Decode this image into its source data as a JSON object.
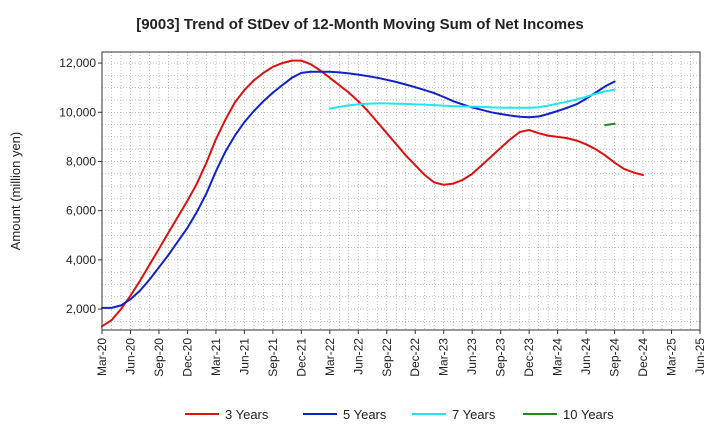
{
  "chart_data": {
    "type": "line",
    "title": "[9003]  Trend of StDev of 12-Month Moving Sum of Net Incomes",
    "ylabel": "Amount (million yen)",
    "xlabel": "",
    "ylim": [
      1150,
      12450
    ],
    "yticks": [
      2000,
      4000,
      6000,
      8000,
      10000,
      12000
    ],
    "ytick_labels": [
      "2,000",
      "4,000",
      "6,000",
      "8,000",
      "10,000",
      "12,000"
    ],
    "xticks": [
      "2020-03",
      "2020-06",
      "2020-09",
      "2020-12",
      "2021-03",
      "2021-06",
      "2021-09",
      "2021-12",
      "2022-03",
      "2022-06",
      "2022-09",
      "2022-12",
      "2023-03",
      "2023-06",
      "2023-09",
      "2023-12",
      "2024-03",
      "2024-06",
      "2024-09",
      "2024-12",
      "2025-03",
      "2025-06"
    ],
    "xtick_labels": [
      "Mar-20",
      "Jun-20",
      "Sep-20",
      "Dec-20",
      "Mar-21",
      "Jun-21",
      "Sep-21",
      "Dec-21",
      "Mar-22",
      "Jun-22",
      "Sep-22",
      "Dec-22",
      "Mar-23",
      "Jun-23",
      "Sep-23",
      "Dec-23",
      "Mar-24",
      "Jun-24",
      "Sep-24",
      "Dec-24",
      "Mar-25",
      "Jun-25"
    ],
    "grid": true,
    "legend_position": "bottom",
    "series": [
      {
        "name": "3 Years",
        "color": "#dd1111",
        "points": [
          [
            "2020-03",
            1300
          ],
          [
            "2020-04",
            1550
          ],
          [
            "2020-05",
            2000
          ],
          [
            "2020-06",
            2550
          ],
          [
            "2020-07",
            3150
          ],
          [
            "2020-08",
            3800
          ],
          [
            "2020-09",
            4450
          ],
          [
            "2020-10",
            5100
          ],
          [
            "2020-11",
            5750
          ],
          [
            "2020-12",
            6400
          ],
          [
            "2021-01",
            7100
          ],
          [
            "2021-02",
            7950
          ],
          [
            "2021-03",
            8900
          ],
          [
            "2021-04",
            9700
          ],
          [
            "2021-05",
            10400
          ],
          [
            "2021-06",
            10900
          ],
          [
            "2021-07",
            11300
          ],
          [
            "2021-08",
            11600
          ],
          [
            "2021-09",
            11850
          ],
          [
            "2021-10",
            12000
          ],
          [
            "2021-11",
            12100
          ],
          [
            "2021-12",
            12100
          ],
          [
            "2022-01",
            11950
          ],
          [
            "2022-02",
            11700
          ],
          [
            "2022-03",
            11400
          ],
          [
            "2022-04",
            11100
          ],
          [
            "2022-05",
            10800
          ],
          [
            "2022-06",
            10450
          ],
          [
            "2022-07",
            10050
          ],
          [
            "2022-08",
            9600
          ],
          [
            "2022-09",
            9150
          ],
          [
            "2022-10",
            8700
          ],
          [
            "2022-11",
            8250
          ],
          [
            "2022-12",
            7850
          ],
          [
            "2023-01",
            7450
          ],
          [
            "2023-02",
            7150
          ],
          [
            "2023-03",
            7050
          ],
          [
            "2023-04",
            7100
          ],
          [
            "2023-05",
            7250
          ],
          [
            "2023-06",
            7500
          ],
          [
            "2023-07",
            7850
          ],
          [
            "2023-08",
            8200
          ],
          [
            "2023-09",
            8550
          ],
          [
            "2023-10",
            8900
          ],
          [
            "2023-11",
            9200
          ],
          [
            "2023-12",
            9280
          ],
          [
            "2024-01",
            9150
          ],
          [
            "2024-02",
            9050
          ],
          [
            "2024-03",
            9000
          ],
          [
            "2024-04",
            8950
          ],
          [
            "2024-05",
            8850
          ],
          [
            "2024-06",
            8700
          ],
          [
            "2024-07",
            8500
          ],
          [
            "2024-08",
            8250
          ],
          [
            "2024-09",
            7950
          ],
          [
            "2024-10",
            7700
          ],
          [
            "2024-11",
            7550
          ],
          [
            "2024-12",
            7450
          ]
        ]
      },
      {
        "name": "5 Years",
        "color": "#1122cc",
        "points": [
          [
            "2020-03",
            2050
          ],
          [
            "2020-04",
            2050
          ],
          [
            "2020-05",
            2150
          ],
          [
            "2020-06",
            2400
          ],
          [
            "2020-07",
            2750
          ],
          [
            "2020-08",
            3200
          ],
          [
            "2020-09",
            3700
          ],
          [
            "2020-10",
            4200
          ],
          [
            "2020-11",
            4750
          ],
          [
            "2020-12",
            5300
          ],
          [
            "2021-01",
            5950
          ],
          [
            "2021-02",
            6700
          ],
          [
            "2021-03",
            7600
          ],
          [
            "2021-04",
            8400
          ],
          [
            "2021-05",
            9050
          ],
          [
            "2021-06",
            9600
          ],
          [
            "2021-07",
            10050
          ],
          [
            "2021-08",
            10450
          ],
          [
            "2021-09",
            10800
          ],
          [
            "2021-10",
            11100
          ],
          [
            "2021-11",
            11400
          ],
          [
            "2021-12",
            11600
          ],
          [
            "2022-01",
            11650
          ],
          [
            "2022-02",
            11650
          ],
          [
            "2022-03",
            11650
          ],
          [
            "2022-04",
            11620
          ],
          [
            "2022-05",
            11580
          ],
          [
            "2022-06",
            11530
          ],
          [
            "2022-07",
            11470
          ],
          [
            "2022-08",
            11400
          ],
          [
            "2022-09",
            11320
          ],
          [
            "2022-10",
            11230
          ],
          [
            "2022-11",
            11130
          ],
          [
            "2022-12",
            11020
          ],
          [
            "2023-01",
            10900
          ],
          [
            "2023-02",
            10780
          ],
          [
            "2023-03",
            10620
          ],
          [
            "2023-04",
            10450
          ],
          [
            "2023-05",
            10320
          ],
          [
            "2023-06",
            10200
          ],
          [
            "2023-07",
            10100
          ],
          [
            "2023-08",
            10000
          ],
          [
            "2023-09",
            9930
          ],
          [
            "2023-10",
            9870
          ],
          [
            "2023-11",
            9820
          ],
          [
            "2023-12",
            9800
          ],
          [
            "2024-01",
            9830
          ],
          [
            "2024-02",
            9930
          ],
          [
            "2024-03",
            10050
          ],
          [
            "2024-04",
            10180
          ],
          [
            "2024-05",
            10330
          ],
          [
            "2024-06",
            10550
          ],
          [
            "2024-07",
            10800
          ],
          [
            "2024-08",
            11050
          ],
          [
            "2024-09",
            11250
          ]
        ]
      },
      {
        "name": "7 Years",
        "color": "#22e5ee",
        "points": [
          [
            "2022-03",
            10150
          ],
          [
            "2022-04",
            10220
          ],
          [
            "2022-05",
            10280
          ],
          [
            "2022-06",
            10320
          ],
          [
            "2022-07",
            10350
          ],
          [
            "2022-08",
            10360
          ],
          [
            "2022-09",
            10360
          ],
          [
            "2022-10",
            10350
          ],
          [
            "2022-11",
            10340
          ],
          [
            "2022-12",
            10320
          ],
          [
            "2023-01",
            10310
          ],
          [
            "2023-02",
            10290
          ],
          [
            "2023-03",
            10270
          ],
          [
            "2023-04",
            10250
          ],
          [
            "2023-05",
            10240
          ],
          [
            "2023-06",
            10230
          ],
          [
            "2023-07",
            10220
          ],
          [
            "2023-08",
            10200
          ],
          [
            "2023-09",
            10190
          ],
          [
            "2023-10",
            10180
          ],
          [
            "2023-11",
            10180
          ],
          [
            "2023-12",
            10180
          ],
          [
            "2024-01",
            10200
          ],
          [
            "2024-02",
            10270
          ],
          [
            "2024-03",
            10350
          ],
          [
            "2024-04",
            10430
          ],
          [
            "2024-05",
            10520
          ],
          [
            "2024-06",
            10630
          ],
          [
            "2024-07",
            10750
          ],
          [
            "2024-08",
            10850
          ],
          [
            "2024-09",
            10920
          ]
        ]
      },
      {
        "name": "10 Years",
        "color": "#228822",
        "points": [
          [
            "2024-08",
            9480
          ],
          [
            "2024-09",
            9530
          ]
        ]
      }
    ]
  }
}
